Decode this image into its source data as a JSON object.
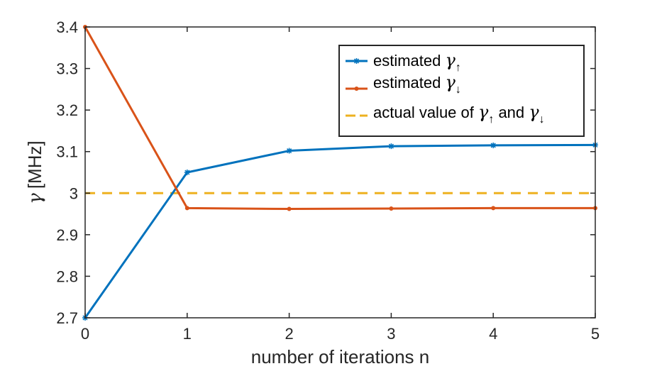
{
  "chart_data": {
    "type": "line",
    "xlabel": "number of iterations n",
    "ylabel_symbol": "γ",
    "ylabel_unit": "[MHz]",
    "xlim": [
      0,
      5
    ],
    "ylim": [
      2.7,
      3.4
    ],
    "xticks": [
      0,
      1,
      2,
      3,
      4,
      5
    ],
    "yticks": [
      2.7,
      2.8,
      2.9,
      3,
      3.1,
      3.2,
      3.3,
      3.4
    ],
    "ytick_labels": [
      "2.7",
      "2.8",
      "2.9",
      "3",
      "3.1",
      "3.2",
      "3.3",
      "3.4"
    ],
    "grid": false,
    "legend_position": "top-right",
    "x": [
      0,
      1,
      2,
      3,
      4,
      5
    ],
    "series": [
      {
        "name": "estimated γ↑",
        "legend_prefix": "estimated ",
        "legend_symbol": "γ",
        "legend_subscript": "↑",
        "color": "#0072BD",
        "marker": "asterisk",
        "values": [
          2.7,
          3.05,
          3.102,
          3.113,
          3.115,
          3.116
        ]
      },
      {
        "name": "estimated γ↓",
        "legend_prefix": "estimated ",
        "legend_symbol": "γ",
        "legend_subscript": "↓",
        "color": "#D95319",
        "marker": "dot",
        "values": [
          3.4,
          2.964,
          2.962,
          2.963,
          2.964,
          2.964
        ]
      }
    ],
    "reference_line": {
      "name": "actual value of γ↑ and γ↓",
      "legend_prefix": "actual value of ",
      "legend_symbol_1": "γ",
      "legend_subscript_1": "↑",
      "legend_middle": " and ",
      "legend_symbol_2": "γ",
      "legend_subscript_2": "↓",
      "color": "#EDB120",
      "style": "dashed",
      "value": 3.0
    }
  }
}
